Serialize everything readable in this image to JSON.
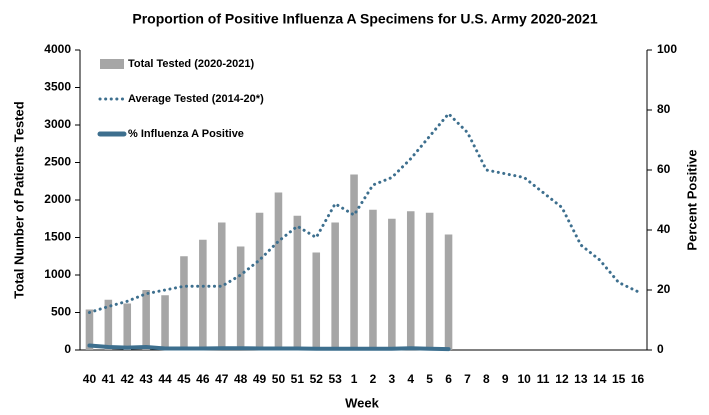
{
  "chart_data": {
    "type": "bar",
    "title": "Proportion of Positive Influenza A Specimens for U.S. Army 2020-2021",
    "x_label": "Week",
    "y_label": "Total Number of Patients Tested",
    "y2_label": "Percent Positive",
    "categories": [
      "40",
      "41",
      "42",
      "43",
      "44",
      "45",
      "46",
      "47",
      "48",
      "49",
      "50",
      "51",
      "52",
      "53",
      "1",
      "2",
      "3",
      "4",
      "5",
      "6",
      "7",
      "8",
      "9",
      "10",
      "11",
      "12",
      "13",
      "14",
      "15",
      "16"
    ],
    "series": [
      {
        "name": "Total Tested (2020-2021)",
        "type": "bar",
        "color": "#a6a6a6",
        "values": [
          540,
          670,
          620,
          800,
          730,
          1250,
          1470,
          1700,
          1380,
          1830,
          2100,
          1790,
          1300,
          1700,
          2340,
          1870,
          1750,
          1850,
          1830,
          1540,
          null,
          null,
          null,
          null,
          null,
          null,
          null,
          null,
          null,
          null
        ]
      },
      {
        "name": "Average Tested (2014-20*)",
        "type": "line",
        "style": "dotted",
        "color": "#3d6f8e",
        "values": [
          500,
          580,
          650,
          750,
          800,
          850,
          850,
          850,
          1000,
          1200,
          1450,
          1650,
          1500,
          1950,
          1800,
          2200,
          2300,
          2550,
          2850,
          3150,
          2900,
          2400,
          2350,
          2300,
          2100,
          1900,
          1400,
          1200,
          900,
          780
        ]
      },
      {
        "name": "% Influenza A Positive",
        "type": "line",
        "style": "solid",
        "color": "#3d6f8e",
        "axis": "y2",
        "values": [
          1.5,
          1,
          0.8,
          1,
          0.5,
          0.5,
          0.5,
          0.6,
          0.6,
          0.5,
          0.5,
          0.5,
          0.4,
          0.4,
          0.4,
          0.4,
          0.4,
          0.6,
          0.4,
          0.3,
          null,
          null,
          null,
          null,
          null,
          null,
          null,
          null,
          null,
          null
        ]
      }
    ],
    "ylim": [
      0,
      4000
    ],
    "yticks": [
      0,
      500,
      1000,
      1500,
      2000,
      2500,
      3000,
      3500,
      4000
    ],
    "y2lim": [
      0,
      100
    ],
    "y2ticks": [
      0,
      20,
      40,
      60,
      80,
      100
    ],
    "legend": "upper left"
  }
}
